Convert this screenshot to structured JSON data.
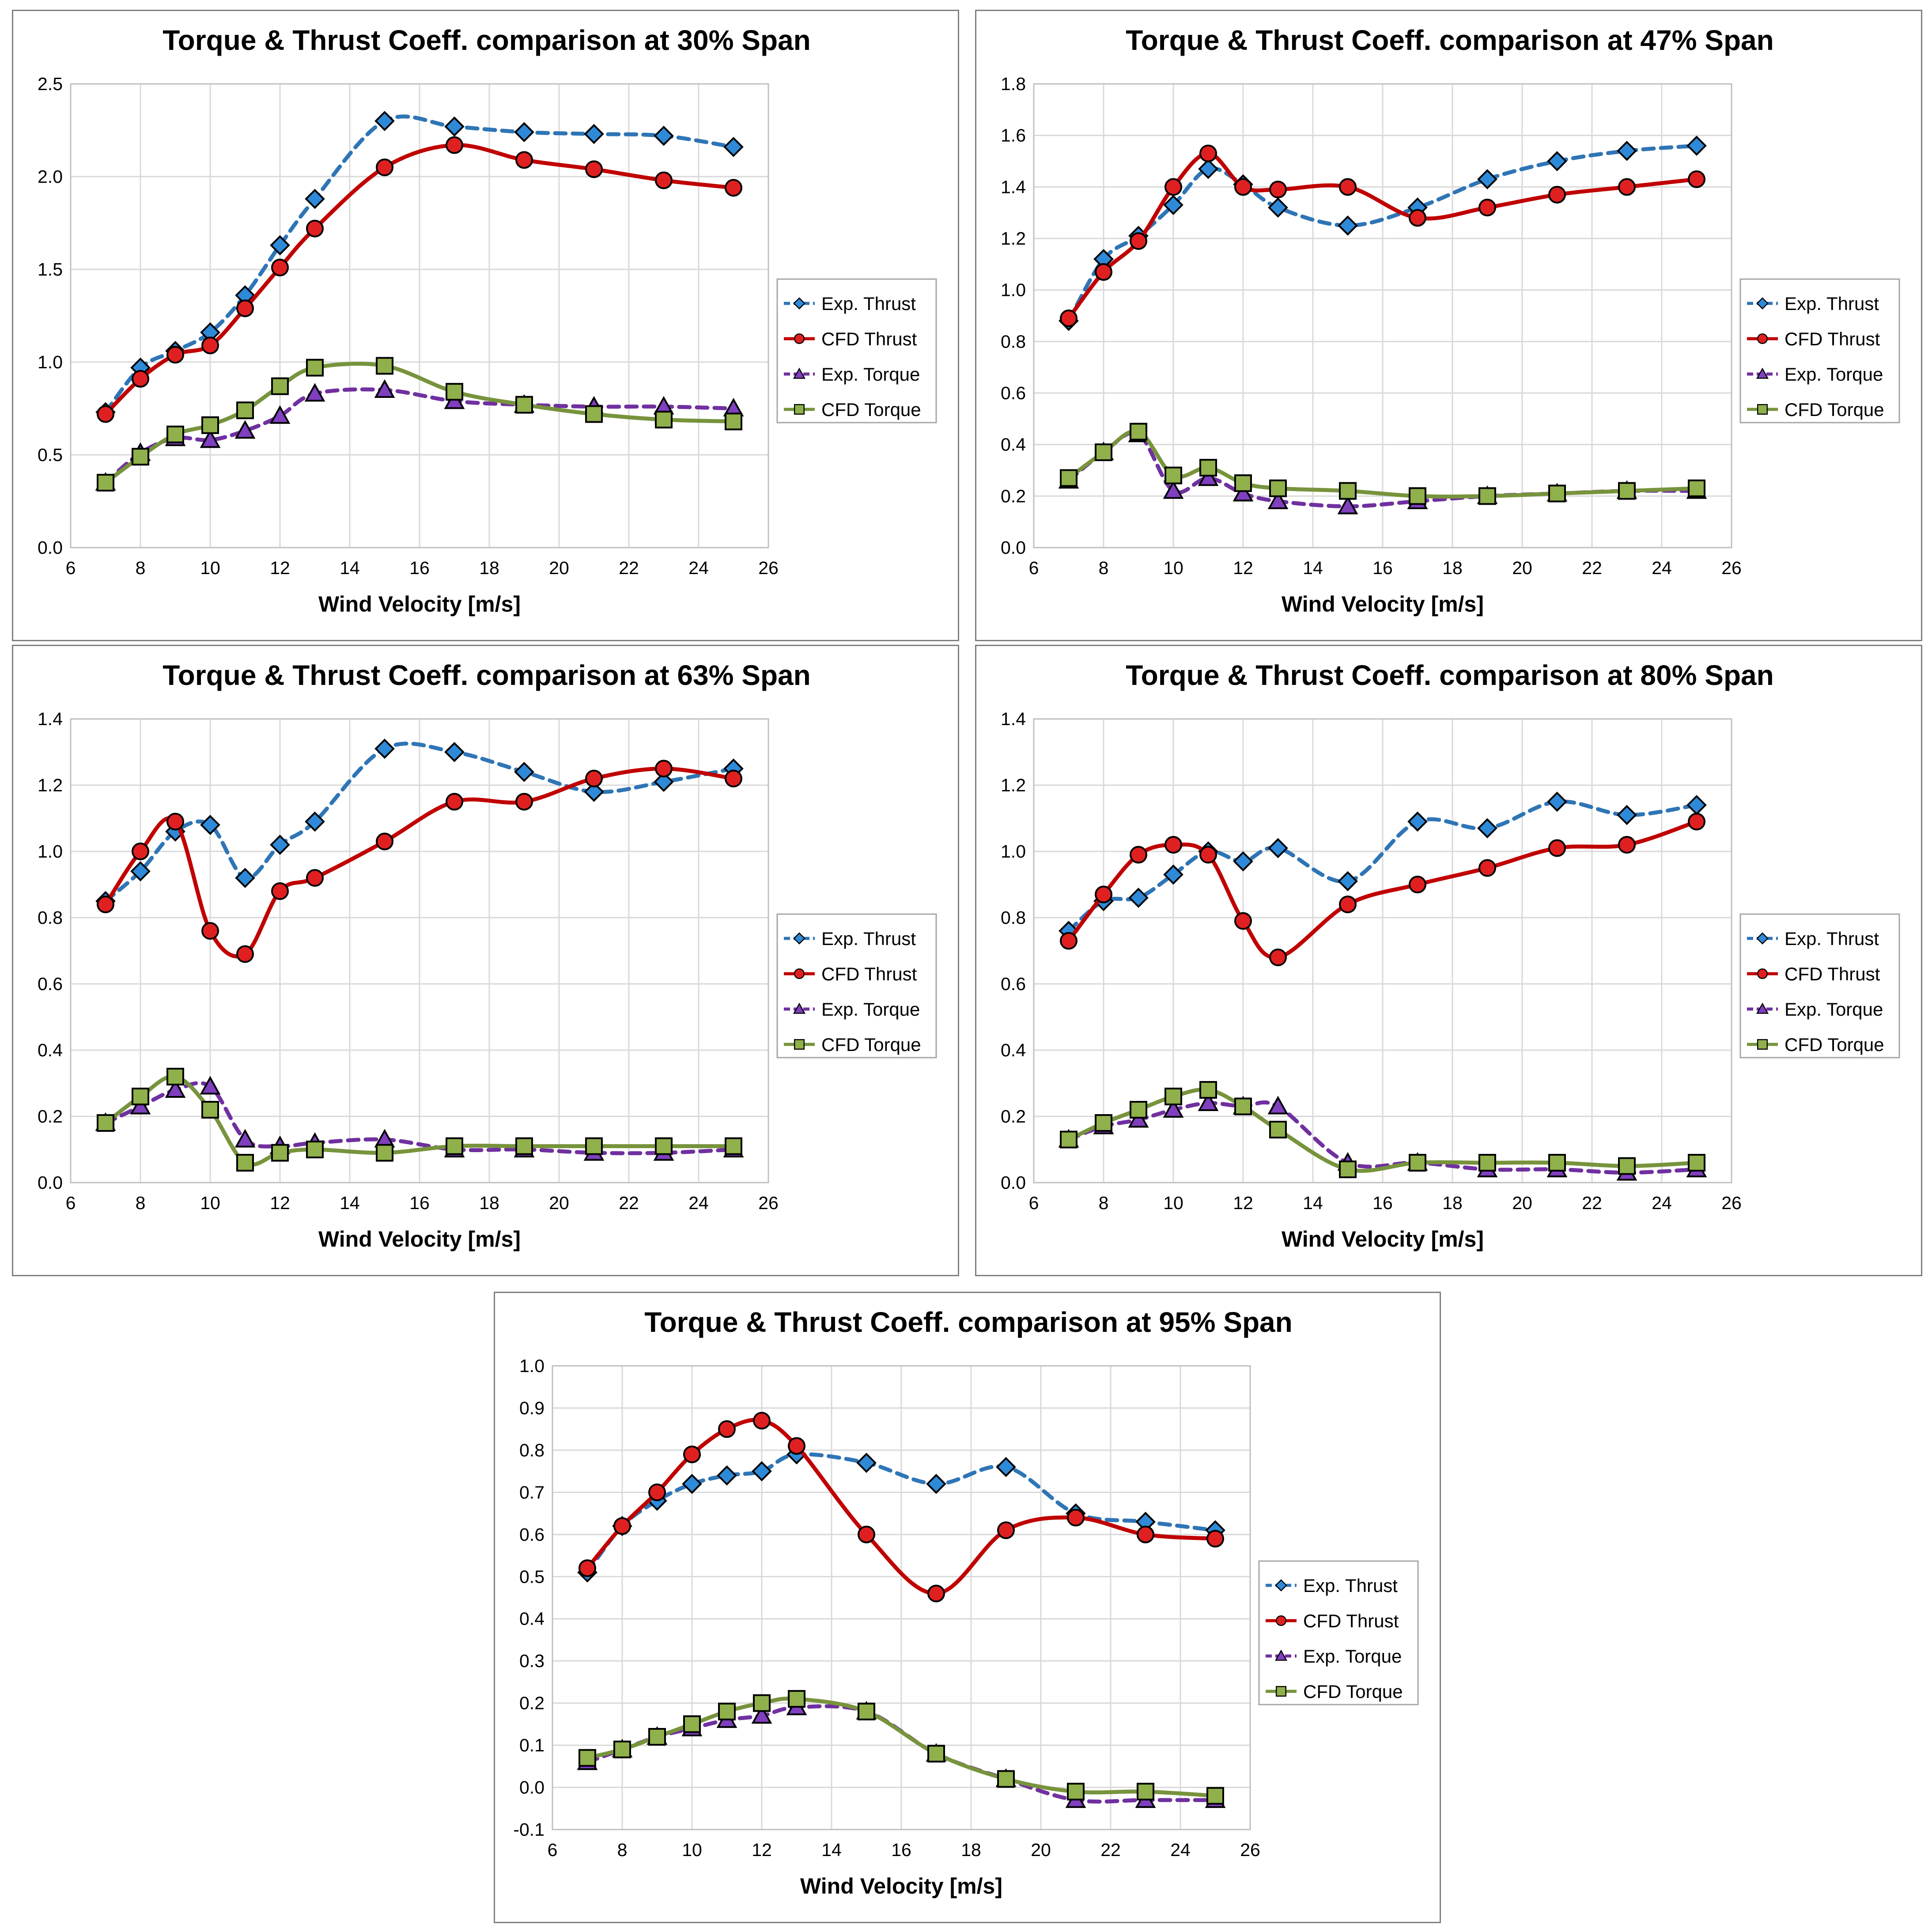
{
  "colors": {
    "exp_thrust": "#2e75b6",
    "exp_thrust_marker": "#2e8ad8",
    "cfd_thrust": "#c00000",
    "cfd_thrust_marker": "#e02020",
    "exp_torque": "#7030a0",
    "exp_torque_marker": "#7f3fbf",
    "cfd_torque": "#77933c",
    "cfd_torque_marker": "#8fb04a",
    "grid": "#d9d9d9",
    "frame": "#7f7f7f"
  },
  "chart_data": [
    {
      "type": "line",
      "title": "Torque & Thrust Coeff. comparison at 30% Span",
      "xlabel": "Wind Velocity [m/s]",
      "ylabel": "",
      "xlim": [
        6,
        26
      ],
      "xstep": 2,
      "ylim": [
        0,
        2.5
      ],
      "ystep": 0.5,
      "ydecimals": 1,
      "grid": true,
      "legend_position": "right",
      "x": [
        7,
        8,
        9,
        10,
        11,
        12,
        13,
        15,
        17,
        19,
        21,
        23,
        25
      ],
      "series": [
        {
          "name": "Exp. Thrust",
          "style": "dashed",
          "marker": "diamond",
          "values": [
            0.73,
            0.97,
            1.06,
            1.16,
            1.36,
            1.63,
            1.88,
            2.3,
            2.27,
            2.24,
            2.23,
            2.22,
            2.16
          ]
        },
        {
          "name": "CFD Thrust",
          "style": "solid",
          "marker": "circle",
          "values": [
            0.72,
            0.91,
            1.04,
            1.09,
            1.29,
            1.51,
            1.72,
            2.05,
            2.17,
            2.09,
            2.04,
            1.98,
            1.94
          ]
        },
        {
          "name": "Exp. Torque",
          "style": "dashed",
          "marker": "triangle",
          "values": [
            0.35,
            0.51,
            0.59,
            0.58,
            0.63,
            0.71,
            0.83,
            0.85,
            0.79,
            0.77,
            0.76,
            0.76,
            0.75
          ]
        },
        {
          "name": "CFD Torque",
          "style": "solid",
          "marker": "square",
          "values": [
            0.35,
            0.49,
            0.61,
            0.66,
            0.74,
            0.87,
            0.97,
            0.98,
            0.84,
            0.77,
            0.72,
            0.69,
            0.68
          ]
        }
      ]
    },
    {
      "type": "line",
      "title": "Torque & Thrust Coeff. comparison at 47% Span",
      "xlabel": "Wind Velocity [m/s]",
      "ylabel": "",
      "xlim": [
        6,
        26
      ],
      "xstep": 2,
      "ylim": [
        0,
        1.8
      ],
      "ystep": 0.2,
      "ydecimals": 1,
      "grid": true,
      "legend_position": "right",
      "x": [
        7,
        8,
        9,
        10,
        11,
        12,
        13,
        15,
        17,
        19,
        21,
        23,
        25
      ],
      "series": [
        {
          "name": "Exp. Thrust",
          "style": "dashed",
          "marker": "diamond",
          "values": [
            0.88,
            1.12,
            1.21,
            1.33,
            1.47,
            1.41,
            1.32,
            1.25,
            1.32,
            1.43,
            1.5,
            1.54,
            1.56
          ]
        },
        {
          "name": "CFD Thrust",
          "style": "solid",
          "marker": "circle",
          "values": [
            0.89,
            1.07,
            1.19,
            1.4,
            1.53,
            1.4,
            1.39,
            1.4,
            1.28,
            1.32,
            1.37,
            1.4,
            1.43
          ]
        },
        {
          "name": "Exp. Torque",
          "style": "dashed",
          "marker": "triangle",
          "values": [
            0.26,
            0.37,
            0.44,
            0.22,
            0.27,
            0.21,
            0.18,
            0.16,
            0.18,
            0.2,
            0.21,
            0.22,
            0.22
          ]
        },
        {
          "name": "CFD Torque",
          "style": "solid",
          "marker": "square",
          "values": [
            0.27,
            0.37,
            0.45,
            0.28,
            0.31,
            0.25,
            0.23,
            0.22,
            0.2,
            0.2,
            0.21,
            0.22,
            0.23
          ]
        }
      ]
    },
    {
      "type": "line",
      "title": "Torque & Thrust Coeff. comparison at 63% Span",
      "xlabel": "Wind Velocity [m/s]",
      "ylabel": "",
      "xlim": [
        6,
        26
      ],
      "xstep": 2,
      "ylim": [
        0,
        1.4
      ],
      "ystep": 0.2,
      "ydecimals": 1,
      "grid": true,
      "legend_position": "right",
      "x": [
        7,
        8,
        9,
        10,
        11,
        12,
        13,
        15,
        17,
        19,
        21,
        23,
        25
      ],
      "series": [
        {
          "name": "Exp. Thrust",
          "style": "dashed",
          "marker": "diamond",
          "values": [
            0.85,
            0.94,
            1.06,
            1.08,
            0.92,
            1.02,
            1.09,
            1.31,
            1.3,
            1.24,
            1.18,
            1.21,
            1.25
          ]
        },
        {
          "name": "CFD Thrust",
          "style": "solid",
          "marker": "circle",
          "values": [
            0.84,
            1.0,
            1.09,
            0.76,
            0.69,
            0.88,
            0.92,
            1.03,
            1.15,
            1.15,
            1.22,
            1.25,
            1.22
          ]
        },
        {
          "name": "Exp. Torque",
          "style": "dashed",
          "marker": "triangle",
          "values": [
            0.18,
            0.23,
            0.28,
            0.29,
            0.13,
            0.11,
            0.12,
            0.13,
            0.1,
            0.1,
            0.09,
            0.09,
            0.1
          ]
        },
        {
          "name": "CFD Torque",
          "style": "solid",
          "marker": "square",
          "values": [
            0.18,
            0.26,
            0.32,
            0.22,
            0.06,
            0.09,
            0.1,
            0.09,
            0.11,
            0.11,
            0.11,
            0.11,
            0.11
          ]
        }
      ]
    },
    {
      "type": "line",
      "title": "Torque & Thrust Coeff. comparison at 80% Span",
      "xlabel": "Wind Velocity [m/s]",
      "ylabel": "",
      "xlim": [
        6,
        26
      ],
      "xstep": 2,
      "ylim": [
        0,
        1.4
      ],
      "ystep": 0.2,
      "ydecimals": 1,
      "grid": true,
      "legend_position": "right",
      "x": [
        7,
        8,
        9,
        10,
        11,
        12,
        13,
        15,
        17,
        19,
        21,
        23,
        25
      ],
      "series": [
        {
          "name": "Exp. Thrust",
          "style": "dashed",
          "marker": "diamond",
          "values": [
            0.76,
            0.85,
            0.86,
            0.93,
            1.0,
            0.97,
            1.01,
            0.91,
            1.09,
            1.07,
            1.15,
            1.11,
            1.14
          ]
        },
        {
          "name": "CFD Thrust",
          "style": "solid",
          "marker": "circle",
          "values": [
            0.73,
            0.87,
            0.99,
            1.02,
            0.99,
            0.79,
            0.68,
            0.84,
            0.9,
            0.95,
            1.01,
            1.02,
            1.09
          ]
        },
        {
          "name": "Exp. Torque",
          "style": "dashed",
          "marker": "triangle",
          "values": [
            0.13,
            0.17,
            0.19,
            0.22,
            0.24,
            0.23,
            0.23,
            0.06,
            0.06,
            0.04,
            0.04,
            0.03,
            0.04
          ]
        },
        {
          "name": "CFD Torque",
          "style": "solid",
          "marker": "square",
          "values": [
            0.13,
            0.18,
            0.22,
            0.26,
            0.28,
            0.23,
            0.16,
            0.04,
            0.06,
            0.06,
            0.06,
            0.05,
            0.06
          ]
        }
      ]
    },
    {
      "type": "line",
      "title": "Torque & Thrust Coeff. comparison at 95% Span",
      "xlabel": "Wind Velocity [m/s]",
      "ylabel": "",
      "xlim": [
        6,
        26
      ],
      "xstep": 2,
      "ylim": [
        -0.1,
        1.0
      ],
      "ystep": 0.1,
      "ydecimals": 1,
      "grid": true,
      "legend_position": "right",
      "x": [
        7,
        8,
        9,
        10,
        11,
        12,
        13,
        15,
        17,
        19,
        21,
        23,
        25
      ],
      "series": [
        {
          "name": "Exp. Thrust",
          "style": "dashed",
          "marker": "diamond",
          "values": [
            0.51,
            0.62,
            0.68,
            0.72,
            0.74,
            0.75,
            0.79,
            0.77,
            0.72,
            0.76,
            0.65,
            0.63,
            0.61
          ]
        },
        {
          "name": "CFD Thrust",
          "style": "solid",
          "marker": "circle",
          "values": [
            0.52,
            0.62,
            0.7,
            0.79,
            0.85,
            0.87,
            0.81,
            0.6,
            0.46,
            0.61,
            0.64,
            0.6,
            0.59
          ]
        },
        {
          "name": "Exp. Torque",
          "style": "dashed",
          "marker": "triangle",
          "values": [
            0.06,
            0.09,
            0.12,
            0.14,
            0.16,
            0.17,
            0.19,
            0.18,
            0.08,
            0.02,
            -0.03,
            -0.03,
            -0.03
          ]
        },
        {
          "name": "CFD Torque",
          "style": "solid",
          "marker": "square",
          "values": [
            0.07,
            0.09,
            0.12,
            0.15,
            0.18,
            0.2,
            0.21,
            0.18,
            0.08,
            0.02,
            -0.01,
            -0.01,
            -0.02
          ]
        }
      ]
    }
  ]
}
